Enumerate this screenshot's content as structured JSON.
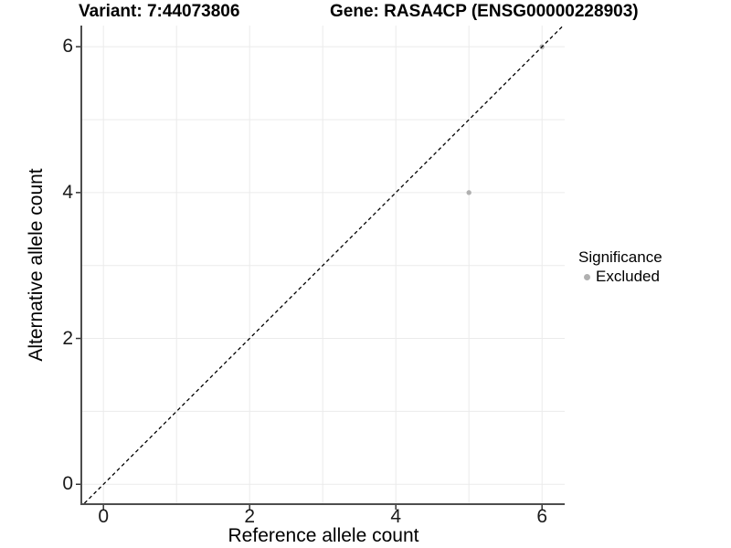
{
  "chart_data": {
    "type": "scatter",
    "title_left": "Variant: 7:44073806",
    "title_right": "Gene: RASA4CP (ENSG00000228903)",
    "xlabel": "Reference allele count",
    "ylabel": "Alternative allele count",
    "xlim": [
      -0.29,
      6.31
    ],
    "ylim": [
      -0.26,
      6.29
    ],
    "xticks": [
      0,
      2,
      4,
      6
    ],
    "yticks": [
      0,
      2,
      4,
      6
    ],
    "grid": "on",
    "grid_interval": 1,
    "identity_line": {
      "equation": "y = x",
      "style": "dashed",
      "color": "#000000"
    },
    "series": [
      {
        "name": "Excluded",
        "color": "#b0b0b0",
        "point_radius": 2.7,
        "points": [
          {
            "x": 5,
            "y": 4
          },
          {
            "x": 6,
            "y": 6
          }
        ]
      }
    ],
    "legend": {
      "position": "right",
      "title": "Significance",
      "items": [
        {
          "label": "Excluded",
          "color": "#b0b0b0"
        }
      ]
    }
  },
  "colors": {
    "background": "#ffffff",
    "gridline": "#ebebeb",
    "axis_line": "#4d4d4d",
    "tick_mark": "#333333",
    "tick_text": "#1a1a1a",
    "title_text": "#000000"
  }
}
